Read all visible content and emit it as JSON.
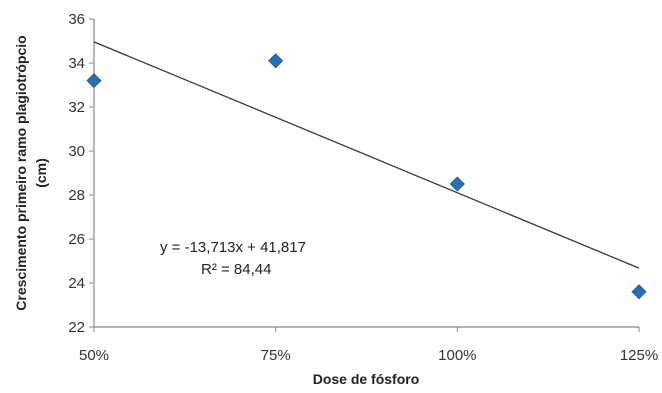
{
  "chart_data": {
    "type": "scatter",
    "title": "",
    "xlabel": "Dose de fósforo",
    "ylabel_line1": "Crescimento primeiro ramo plagiotrópcio",
    "ylabel_line2": "(cm)",
    "categories": [
      "50%",
      "75%",
      "100%",
      "125%"
    ],
    "x": [
      1,
      2,
      3,
      4
    ],
    "y": [
      33.2,
      34.1,
      28.5,
      23.6
    ],
    "yticks": [
      "22",
      "24",
      "26",
      "28",
      "30",
      "32",
      "34",
      "36"
    ],
    "ylim": [
      22,
      36
    ],
    "grid": false,
    "marker": "diamond",
    "marker_color": "#2a6fb0",
    "trendline": {
      "slope": -13.713,
      "intercept": 41.817,
      "x_scale": "fraction",
      "equation": "y = -13,713x + 41,817",
      "r2": "R² = 84,44",
      "color": "#3a3a3a"
    }
  }
}
